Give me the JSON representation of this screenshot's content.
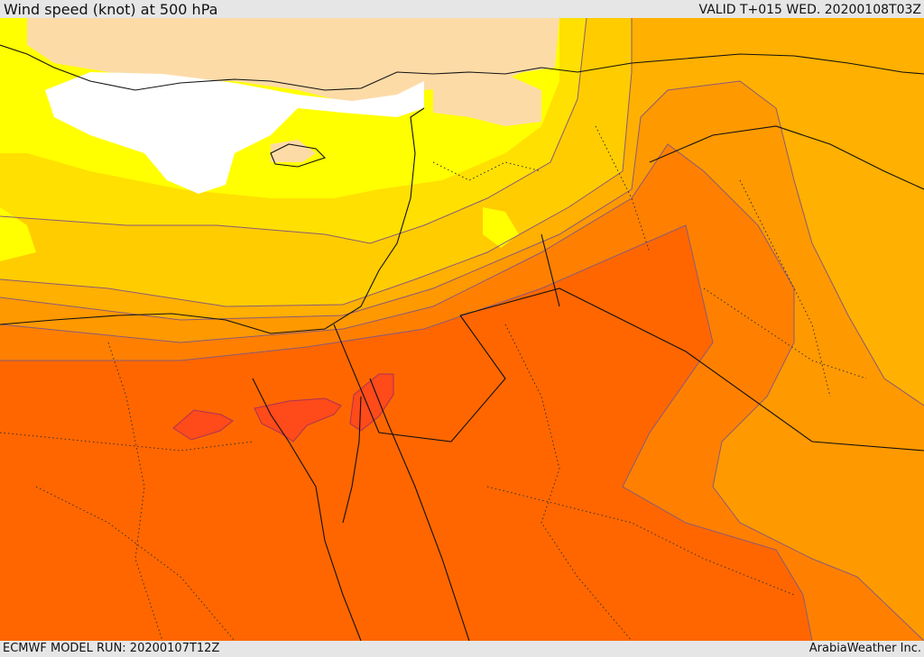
{
  "header": {
    "title": "Wind speed (knot) at 500 hPa",
    "valid_time": "VALID T+015 WED. 20200108T03Z"
  },
  "footer": {
    "model_run": "ECMWF MODEL RUN: 20200107T12Z",
    "credit": "ArabiaWeather Inc."
  },
  "map": {
    "field": "wind-speed-500hPa",
    "palette": {
      "land_beige": "#fddba7",
      "calm_white": "#ffffff",
      "yellow": "#ffff00",
      "light_gold": "#ffe000",
      "gold": "#ffcc00",
      "amber": "#ffb000",
      "light_orange": "#ff9900",
      "orange": "#ff8000",
      "dark_orange": "#ff6600",
      "red_orange": "#ff4a1a"
    }
  }
}
